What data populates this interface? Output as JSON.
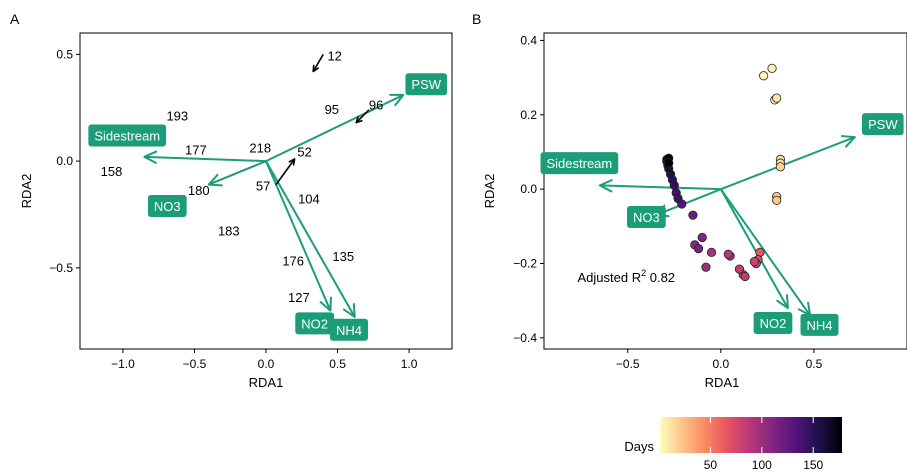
{
  "colors": {
    "biplot": "#1b9e77",
    "arrow_black": "#000000",
    "label_text": "#ffffff",
    "axis": "#000000",
    "days_gradient": [
      "#fcfdbf",
      "#fec287",
      "#fb8861",
      "#e65164",
      "#b63679",
      "#7f2582",
      "#51127c",
      "#1d1147",
      "#000004"
    ]
  },
  "chart_data": [
    {
      "panel": "A",
      "type": "scatter",
      "xlabel": "RDA1",
      "ylabel": "RDA2",
      "xlim": [
        -1.3,
        1.3
      ],
      "ylim": [
        -0.88,
        0.6
      ],
      "xticks": [
        -1.0,
        -0.5,
        0.0,
        0.5,
        1.0
      ],
      "xtick_labels": [
        "−1.0",
        "−0.5",
        "0.0",
        "0.5",
        "1.0"
      ],
      "yticks": [
        -0.5,
        0.0,
        0.5
      ],
      "ytick_labels": [
        "−0.5",
        "0.0",
        "0.5"
      ],
      "grid": false,
      "sample_labels": [
        {
          "text": "12",
          "x": 0.48,
          "y": 0.49
        },
        {
          "text": "95",
          "x": 0.46,
          "y": 0.24
        },
        {
          "text": "96",
          "x": 0.77,
          "y": 0.26
        },
        {
          "text": "193",
          "x": -0.62,
          "y": 0.21
        },
        {
          "text": "177",
          "x": -0.49,
          "y": 0.05
        },
        {
          "text": "218",
          "x": -0.04,
          "y": 0.06
        },
        {
          "text": "52",
          "x": 0.27,
          "y": 0.04
        },
        {
          "text": "158",
          "x": -1.08,
          "y": -0.05
        },
        {
          "text": "57",
          "x": -0.02,
          "y": -0.12
        },
        {
          "text": "180",
          "x": -0.47,
          "y": -0.14
        },
        {
          "text": "104",
          "x": 0.3,
          "y": -0.18
        },
        {
          "text": "183",
          "x": -0.26,
          "y": -0.33
        },
        {
          "text": "135",
          "x": 0.54,
          "y": -0.45
        },
        {
          "text": "176",
          "x": 0.19,
          "y": -0.47
        },
        {
          "text": "127",
          "x": 0.23,
          "y": -0.64
        }
      ],
      "sample_arrows": [
        {
          "label": "12",
          "x": 0.33,
          "y": 0.42,
          "x0": 0.4,
          "y0": 0.5
        },
        {
          "label": "96",
          "x": 0.63,
          "y": 0.18,
          "x0": 0.72,
          "y0": 0.24
        },
        {
          "label": "57",
          "x": 0.2,
          "y": 0.01,
          "x0": 0.07,
          "y0": -0.11
        }
      ],
      "env_vectors": [
        {
          "label": "PSW",
          "x": 0.96,
          "y": 0.31,
          "label_x": 1.12,
          "label_y": 0.36
        },
        {
          "label": "Sidestream",
          "x": -0.85,
          "y": 0.02,
          "label_x": -0.97,
          "label_y": 0.12
        },
        {
          "label": "NO3",
          "x": -0.4,
          "y": -0.11,
          "label_x": -0.69,
          "label_y": -0.21
        },
        {
          "label": "NO2",
          "x": 0.45,
          "y": -0.7,
          "label_x": 0.34,
          "label_y": -0.76
        },
        {
          "label": "NH4",
          "x": 0.62,
          "y": -0.73,
          "label_x": 0.58,
          "label_y": -0.79
        }
      ]
    },
    {
      "panel": "B",
      "type": "scatter",
      "xlabel": "RDA1",
      "ylabel": "RDA2",
      "xlim": [
        -0.95,
        1.0
      ],
      "ylim": [
        -0.43,
        0.42
      ],
      "xticks": [
        -0.5,
        0.0,
        0.5
      ],
      "xtick_labels": [
        "−0.5",
        "0.0",
        "0.5"
      ],
      "yticks": [
        -0.4,
        -0.2,
        0.0,
        0.2,
        0.4
      ],
      "ytick_labels": [
        "−0.4",
        "−0.2",
        "0.0",
        "0.2",
        "0.4"
      ],
      "grid": false,
      "annotation": {
        "text": "Adjusted R",
        "superscript": "2",
        "value": " 0.82",
        "x": -0.77,
        "y": -0.25
      },
      "points": [
        {
          "x": 0.23,
          "y": 0.305,
          "days": 3
        },
        {
          "x": 0.275,
          "y": 0.325,
          "days": 5
        },
        {
          "x": 0.29,
          "y": 0.24,
          "days": 8
        },
        {
          "x": 0.3,
          "y": 0.245,
          "days": 10
        },
        {
          "x": 0.32,
          "y": 0.08,
          "days": 12
        },
        {
          "x": 0.32,
          "y": 0.07,
          "days": 14
        },
        {
          "x": 0.32,
          "y": 0.06,
          "days": 16
        },
        {
          "x": 0.3,
          "y": -0.02,
          "days": 20
        },
        {
          "x": 0.3,
          "y": -0.03,
          "days": 22
        },
        {
          "x": 0.21,
          "y": -0.17,
          "days": 65
        },
        {
          "x": 0.2,
          "y": -0.19,
          "days": 70
        },
        {
          "x": 0.19,
          "y": -0.2,
          "days": 75
        },
        {
          "x": 0.18,
          "y": -0.195,
          "days": 78
        },
        {
          "x": 0.12,
          "y": -0.23,
          "days": 80
        },
        {
          "x": 0.1,
          "y": -0.215,
          "days": 82
        },
        {
          "x": 0.13,
          "y": -0.235,
          "days": 84
        },
        {
          "x": 0.05,
          "y": -0.18,
          "days": 88
        },
        {
          "x": 0.04,
          "y": -0.175,
          "days": 90
        },
        {
          "x": -0.05,
          "y": -0.17,
          "days": 95
        },
        {
          "x": -0.08,
          "y": -0.21,
          "days": 100
        },
        {
          "x": -0.14,
          "y": -0.15,
          "days": 108
        },
        {
          "x": -0.1,
          "y": -0.13,
          "days": 112
        },
        {
          "x": -0.12,
          "y": -0.16,
          "days": 115
        },
        {
          "x": -0.15,
          "y": -0.07,
          "days": 120
        },
        {
          "x": -0.21,
          "y": -0.04,
          "days": 130
        },
        {
          "x": -0.24,
          "y": -0.01,
          "days": 138
        },
        {
          "x": -0.23,
          "y": -0.025,
          "days": 142
        },
        {
          "x": -0.25,
          "y": 0.01,
          "days": 146
        },
        {
          "x": -0.26,
          "y": 0.025,
          "days": 150
        },
        {
          "x": -0.27,
          "y": 0.04,
          "days": 154
        },
        {
          "x": -0.28,
          "y": 0.055,
          "days": 158
        },
        {
          "x": -0.285,
          "y": 0.065,
          "days": 162
        },
        {
          "x": -0.29,
          "y": 0.075,
          "days": 166
        },
        {
          "x": -0.29,
          "y": 0.08,
          "days": 170
        },
        {
          "x": -0.28,
          "y": 0.083,
          "days": 174
        },
        {
          "x": -0.28,
          "y": 0.07,
          "days": 176
        }
      ],
      "env_vectors": [
        {
          "label": "PSW",
          "x": 0.72,
          "y": 0.14,
          "label_x": 0.87,
          "label_y": 0.175
        },
        {
          "label": "Sidestream",
          "x": -0.65,
          "y": 0.01,
          "label_x": -0.76,
          "label_y": 0.07
        },
        {
          "label": "NO3",
          "x": -0.35,
          "y": -0.07,
          "label_x": -0.4,
          "label_y": -0.075
        },
        {
          "label": "NO2",
          "x": 0.36,
          "y": -0.32,
          "label_x": 0.28,
          "label_y": -0.36
        },
        {
          "label": "NH4",
          "x": 0.48,
          "y": -0.34,
          "label_x": 0.53,
          "label_y": -0.365
        }
      ],
      "colorbar": {
        "title": "Days",
        "range": [
          1,
          178
        ],
        "ticks": [
          50,
          100,
          150
        ],
        "tick_labels": [
          "50",
          "100",
          "150"
        ]
      }
    }
  ],
  "panel_tags": [
    "A",
    "B"
  ]
}
